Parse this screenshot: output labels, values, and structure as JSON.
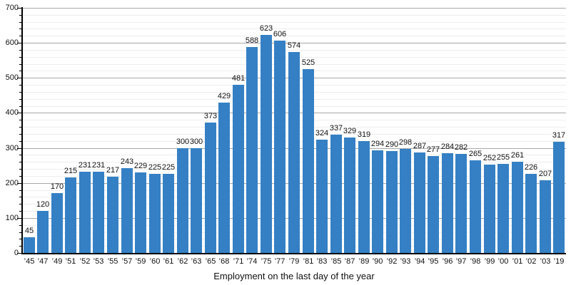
{
  "chart_data": {
    "type": "bar",
    "title": "",
    "xlabel": "Employment on the last day of the year",
    "ylabel": "",
    "ylim": [
      0,
      700
    ],
    "y_major_step": 100,
    "y_minor_step": 20,
    "grid": "major and minor horizontal gridlines",
    "legend_position": "none",
    "bar_color": "#3580c4",
    "categories": [
      "’45",
      "’47",
      "’49",
      "’51",
      "’52",
      "’53",
      "’55",
      "’57",
      "’59",
      "’60",
      "’61",
      "’62",
      "’63",
      "’65",
      "’68",
      "’71",
      "’74",
      "’75",
      "’77",
      "’79",
      "’81",
      "’83",
      "’85",
      "’87",
      "’89",
      "’90",
      "’92",
      "’93",
      "’94",
      "’95",
      "’96",
      "’97",
      "’98",
      "’99",
      "’00",
      "’01",
      "’02",
      "’03",
      "’19"
    ],
    "values": [
      45,
      120,
      170,
      215,
      231,
      231,
      217,
      243,
      229,
      225,
      225,
      300,
      300,
      373,
      429,
      481,
      588,
      623,
      606,
      574,
      525,
      324,
      337,
      329,
      319,
      294,
      290,
      298,
      287,
      277,
      284,
      282,
      265,
      252,
      255,
      261,
      226,
      207,
      317
    ],
    "y_tick_labels": [
      "0",
      "100",
      "200",
      "300",
      "400",
      "500",
      "600",
      "700"
    ]
  }
}
